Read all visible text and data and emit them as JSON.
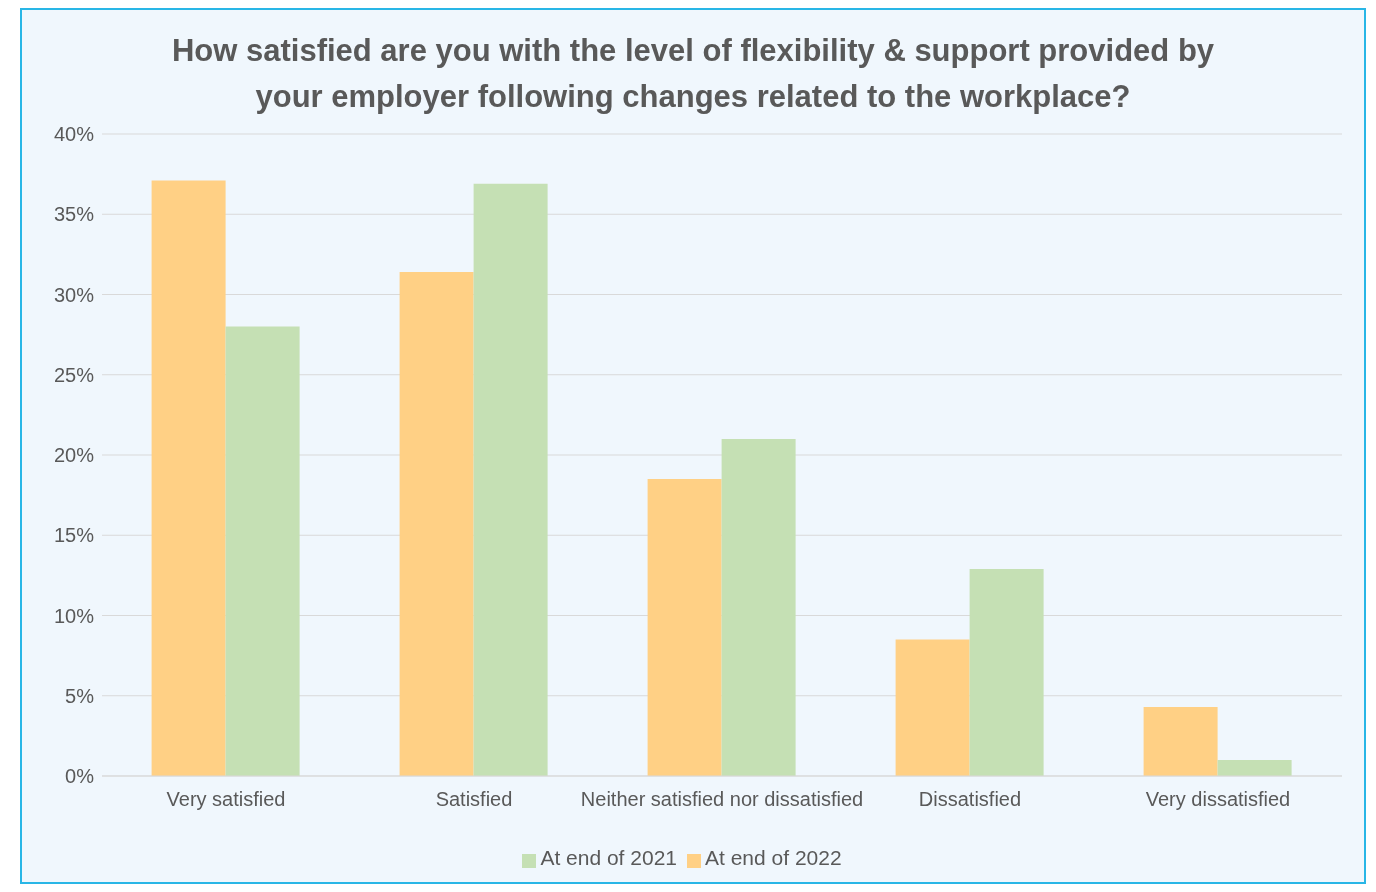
{
  "chart_data": {
    "type": "bar",
    "title": "How satisfied are you with the level of flexibility & support provided by your employer following changes related to the workplace?",
    "categories": [
      "Very satisfied",
      "Satisfied",
      "Neither satisfied nor dissatisfied",
      "Dissatisfied",
      "Very dissatisfied"
    ],
    "series": [
      {
        "name": "At end of 2022",
        "color": "#ffd085",
        "values": [
          37.1,
          31.4,
          18.5,
          8.5,
          4.3
        ]
      },
      {
        "name": "At end of 2021",
        "color": "#c5e0b4",
        "values": [
          28,
          36.9,
          21,
          12.9,
          1
        ]
      }
    ],
    "ylim": [
      0,
      40
    ],
    "yticks": [
      {
        "value": 0,
        "label": "0%"
      },
      {
        "value": 5,
        "label": "5%"
      },
      {
        "value": 10,
        "label": "10%"
      },
      {
        "value": 15,
        "label": "15%"
      },
      {
        "value": 20,
        "label": "20%"
      },
      {
        "value": 25,
        "label": "25%"
      },
      {
        "value": 30,
        "label": "30%"
      },
      {
        "value": 35,
        "label": "35%"
      },
      {
        "value": 40,
        "label": "40%"
      }
    ],
    "grid": "y",
    "legend": "bottom"
  }
}
